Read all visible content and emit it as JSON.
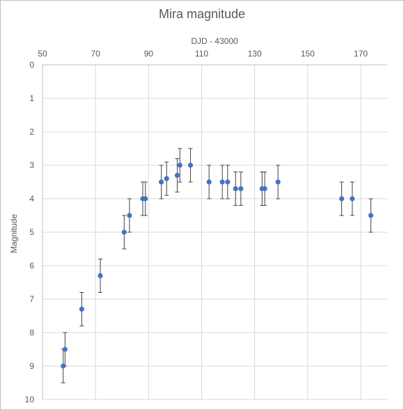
{
  "chart_data": {
    "type": "scatter",
    "title": "Mira magnitude",
    "xlabel": "DJD - 43000",
    "ylabel": "Magnitude",
    "xlim": [
      50,
      180
    ],
    "ylim": [
      0,
      10
    ],
    "y_reversed": true,
    "x_axis_position": "top",
    "x_ticks": [
      50,
      70,
      90,
      110,
      130,
      150,
      170
    ],
    "y_ticks": [
      0,
      1,
      2,
      3,
      4,
      5,
      6,
      7,
      8,
      9,
      10
    ],
    "grid": true,
    "marker_color": "#4472c4",
    "error_bar_color": "#404040",
    "points": [
      {
        "x": 57.8,
        "y": 9.0,
        "err": 0.5
      },
      {
        "x": 58.5,
        "y": 8.5,
        "err": 0.5
      },
      {
        "x": 64.8,
        "y": 7.3,
        "err": 0.5
      },
      {
        "x": 71.8,
        "y": 6.3,
        "err": 0.5
      },
      {
        "x": 80.8,
        "y": 5.0,
        "err": 0.5
      },
      {
        "x": 82.8,
        "y": 4.5,
        "err": 0.5
      },
      {
        "x": 87.8,
        "y": 4.0,
        "err": 0.5
      },
      {
        "x": 88.8,
        "y": 4.0,
        "err": 0.5
      },
      {
        "x": 94.8,
        "y": 3.5,
        "err": 0.5
      },
      {
        "x": 96.8,
        "y": 3.4,
        "err": 0.5
      },
      {
        "x": 100.8,
        "y": 3.3,
        "err": 0.5
      },
      {
        "x": 101.8,
        "y": 3.0,
        "err": 0.5
      },
      {
        "x": 105.8,
        "y": 3.0,
        "err": 0.5
      },
      {
        "x": 112.8,
        "y": 3.5,
        "err": 0.5
      },
      {
        "x": 117.8,
        "y": 3.5,
        "err": 0.5
      },
      {
        "x": 119.8,
        "y": 3.5,
        "err": 0.5
      },
      {
        "x": 122.8,
        "y": 3.7,
        "err": 0.5
      },
      {
        "x": 124.8,
        "y": 3.7,
        "err": 0.5
      },
      {
        "x": 132.8,
        "y": 3.7,
        "err": 0.5
      },
      {
        "x": 133.8,
        "y": 3.7,
        "err": 0.5
      },
      {
        "x": 138.8,
        "y": 3.5,
        "err": 0.5
      },
      {
        "x": 162.8,
        "y": 4.0,
        "err": 0.5
      },
      {
        "x": 166.8,
        "y": 4.0,
        "err": 0.5
      },
      {
        "x": 173.8,
        "y": 4.5,
        "err": 0.5
      }
    ]
  }
}
